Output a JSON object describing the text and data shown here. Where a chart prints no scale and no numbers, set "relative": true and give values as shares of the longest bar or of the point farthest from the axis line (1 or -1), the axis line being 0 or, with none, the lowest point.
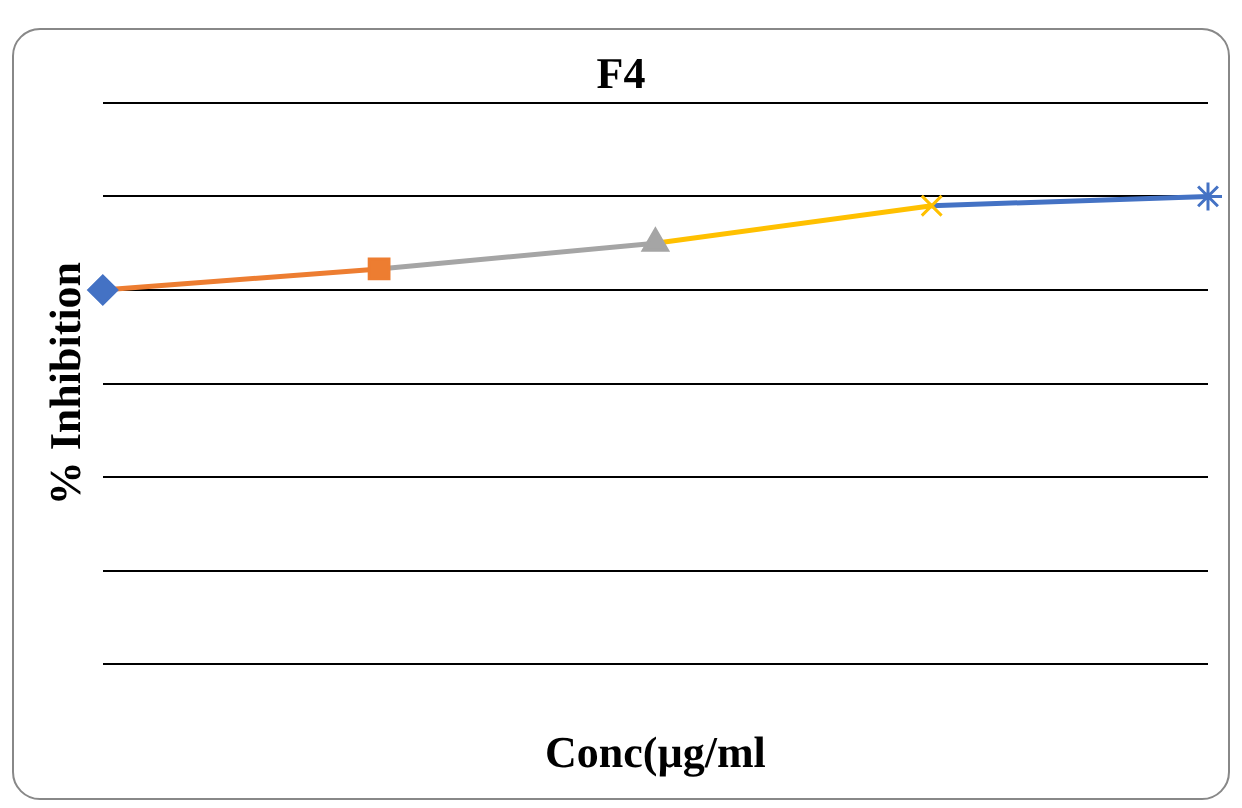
{
  "chart_data": {
    "type": "line",
    "title": "F4",
    "xlabel": "Conc(µg/ml",
    "ylabel": "% Inhibition",
    "relative": true,
    "categories": [
      null,
      null,
      null,
      null,
      null
    ],
    "series": [
      {
        "color": "#ed7d31",
        "values": [
          0.8,
          0.845,
          null,
          null,
          null
        ],
        "colors": [
          "#4472c4",
          "#ed7d31",
          "#a5a5a5",
          "#ffc000",
          "#4472c4"
        ],
        "marker": [
          "diamond",
          "square",
          "none",
          "none",
          "none"
        ]
      },
      {
        "color": "#a5a5a5",
        "values": [
          null,
          0.845,
          0.9,
          null,
          null
        ],
        "colors": [
          "#4472c4",
          "#ed7d31",
          "#a5a5a5",
          "#ffc000",
          "#4472c4"
        ],
        "marker": [
          "none",
          "none",
          "triangle",
          "none",
          "none"
        ]
      },
      {
        "color": "#ffc000",
        "values": [
          null,
          null,
          0.9,
          0.98,
          null
        ],
        "colors": [
          "#4472c4",
          "#ed7d31",
          "#a5a5a5",
          "#ffc000",
          "#4472c4"
        ],
        "marker": [
          "none",
          "none",
          "none",
          "cross",
          "none"
        ]
      },
      {
        "color": "#4472c4",
        "values": [
          null,
          null,
          null,
          0.98,
          1
        ],
        "colors": [
          "#4472c4",
          "#ed7d31",
          "#a5a5a5",
          "#ffc000",
          "#4472c4"
        ],
        "marker": [
          "none",
          "none",
          "none",
          "none",
          "star"
        ]
      }
    ],
    "grid": "y",
    "legend": false
  }
}
